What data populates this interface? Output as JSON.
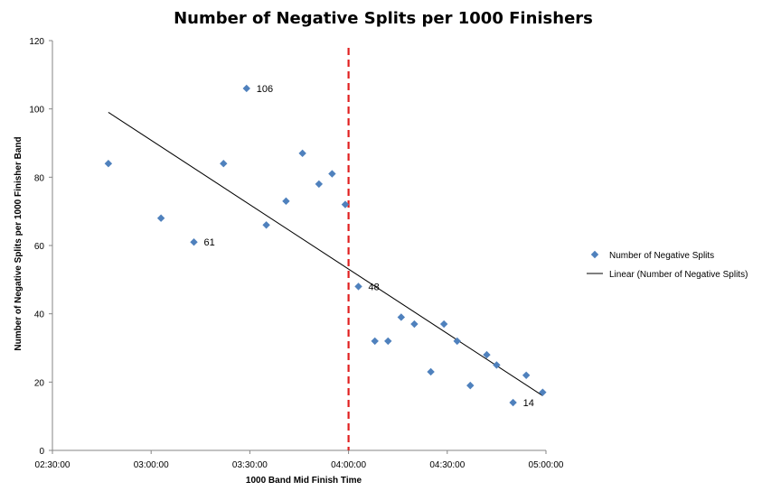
{
  "chart_data": {
    "type": "scatter",
    "title": "Number of Negative Splits per 1000 Finishers",
    "xlabel": "1000 Band Mid Finish Time",
    "ylabel": "Number of Negative Splits per 1000 Finisher Band",
    "xlim": [
      "02:30:00",
      "05:00:00"
    ],
    "ylim": [
      0,
      120
    ],
    "x_ticks": [
      "02:30:00",
      "03:00:00",
      "03:30:00",
      "04:00:00",
      "04:30:00",
      "05:00:00"
    ],
    "y_ticks": [
      0,
      20,
      40,
      60,
      80,
      100,
      120
    ],
    "series": [
      {
        "name": "Number of Negative Splits",
        "color": "#4f81bd",
        "marker": "diamond",
        "points": [
          {
            "x": "02:47:00",
            "y": 84
          },
          {
            "x": "03:03:00",
            "y": 68
          },
          {
            "x": "03:13:00",
            "y": 61
          },
          {
            "x": "03:22:00",
            "y": 84
          },
          {
            "x": "03:29:00",
            "y": 106
          },
          {
            "x": "03:35:00",
            "y": 66
          },
          {
            "x": "03:41:00",
            "y": 73
          },
          {
            "x": "03:46:00",
            "y": 87
          },
          {
            "x": "03:51:00",
            "y": 78
          },
          {
            "x": "03:55:00",
            "y": 81
          },
          {
            "x": "03:59:00",
            "y": 72
          },
          {
            "x": "04:03:00",
            "y": 48
          },
          {
            "x": "04:08:00",
            "y": 32
          },
          {
            "x": "04:12:00",
            "y": 32
          },
          {
            "x": "04:16:00",
            "y": 39
          },
          {
            "x": "04:20:00",
            "y": 37
          },
          {
            "x": "04:25:00",
            "y": 23
          },
          {
            "x": "04:29:00",
            "y": 37
          },
          {
            "x": "04:33:00",
            "y": 32
          },
          {
            "x": "04:37:00",
            "y": 19
          },
          {
            "x": "04:42:00",
            "y": 28
          },
          {
            "x": "04:45:00",
            "y": 25
          },
          {
            "x": "04:50:00",
            "y": 14
          },
          {
            "x": "04:54:00",
            "y": 22
          },
          {
            "x": "04:59:00",
            "y": 17
          }
        ]
      }
    ],
    "trendline": {
      "name": "Linear (Number of Negative Splits)",
      "color": "#000000",
      "from": {
        "x": "02:47:00",
        "y": 99
      },
      "to": {
        "x": "04:59:00",
        "y": 16
      }
    },
    "reference_line": {
      "x": "04:00:00",
      "color": "#e02020",
      "style": "dashed"
    },
    "data_labels": [
      {
        "x": "03:29:00",
        "y": 106,
        "text": "106"
      },
      {
        "x": "03:13:00",
        "y": 61,
        "text": "61"
      },
      {
        "x": "04:03:00",
        "y": 48,
        "text": "48"
      },
      {
        "x": "04:50:00",
        "y": 14,
        "text": "14"
      }
    ],
    "legend": {
      "position": "right",
      "items": [
        {
          "label": "Number of Negative Splits",
          "kind": "marker"
        },
        {
          "label": "Linear (Number of Negative Splits)",
          "kind": "line"
        }
      ]
    },
    "grid": false
  }
}
